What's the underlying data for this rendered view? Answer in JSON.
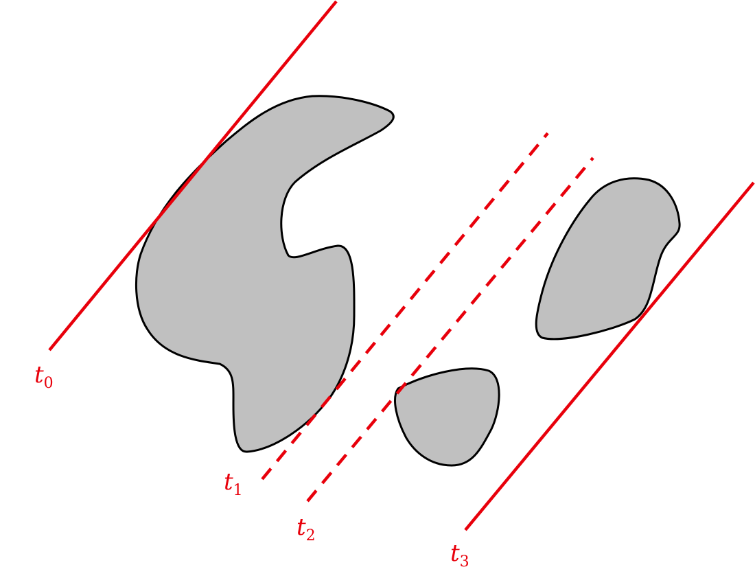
{
  "colors": {
    "line": "#e8000b",
    "shape_fill": "#c0c0c0",
    "shape_stroke": "#000000",
    "background": "#ffffff"
  },
  "lines": [
    {
      "id": "t0",
      "base": "t",
      "sub": "0",
      "style": "solid"
    },
    {
      "id": "t1",
      "base": "t",
      "sub": "1",
      "style": "dashed"
    },
    {
      "id": "t2",
      "base": "t",
      "sub": "2",
      "style": "dashed"
    },
    {
      "id": "t3",
      "base": "t",
      "sub": "3",
      "style": "solid"
    }
  ],
  "shapes": [
    {
      "id": "large-blob"
    },
    {
      "id": "small-blob"
    },
    {
      "id": "right-blob"
    }
  ]
}
